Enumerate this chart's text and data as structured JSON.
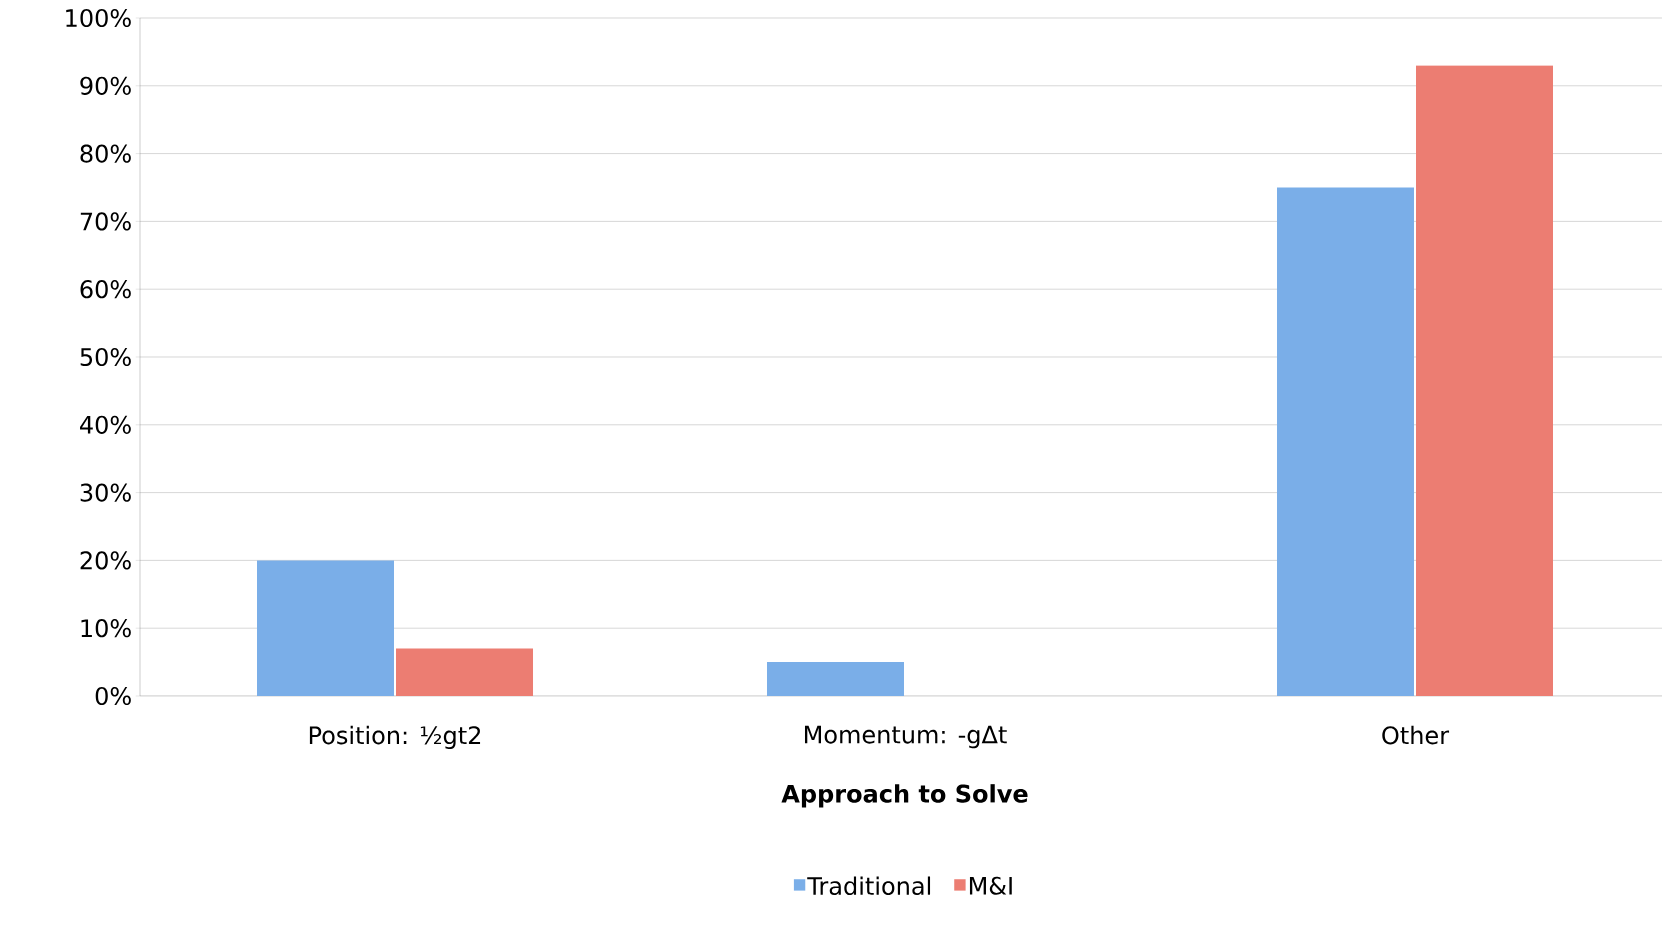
{
  "chart_data": {
    "type": "bar",
    "xlabel": "Approach to Solve",
    "categories": [
      "Position: ½gt2",
      "Momentum: -gΔt",
      "Other"
    ],
    "series": [
      {
        "name": "Traditional",
        "color": "#7aaee8",
        "values": [
          20,
          5,
          75
        ]
      },
      {
        "name": "M&I",
        "color": "#ec7d72",
        "values": [
          7,
          0,
          93
        ]
      }
    ],
    "ylim": [
      0,
      100
    ],
    "yticks": [
      {
        "value": 0,
        "label": "0%"
      },
      {
        "value": 10,
        "label": "10%"
      },
      {
        "value": 20,
        "label": "20%"
      },
      {
        "value": 30,
        "label": "30%"
      },
      {
        "value": 40,
        "label": "40%"
      },
      {
        "value": 50,
        "label": "50%"
      },
      {
        "value": 60,
        "label": "60%"
      },
      {
        "value": 70,
        "label": "70%"
      },
      {
        "value": 80,
        "label": "80%"
      },
      {
        "value": 90,
        "label": "90%"
      },
      {
        "value": 100,
        "label": "100%"
      }
    ],
    "grid": "y",
    "legend": "bottom"
  }
}
